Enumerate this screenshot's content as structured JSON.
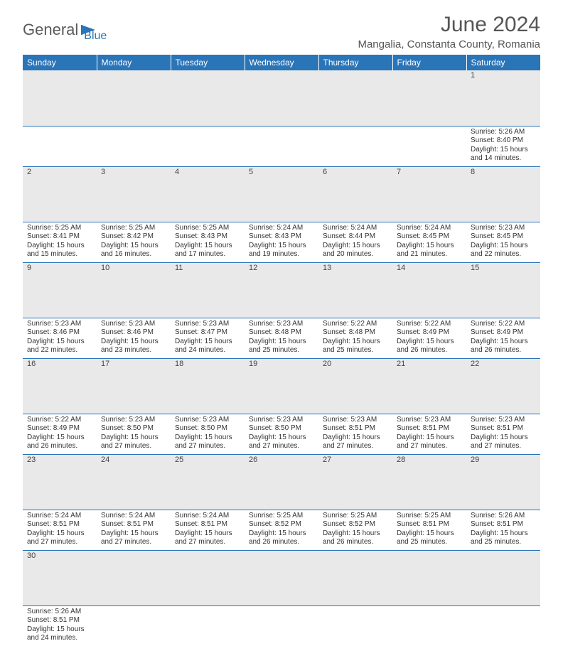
{
  "brand": {
    "part1": "General",
    "part2": "Blue"
  },
  "title": "June 2024",
  "location": "Mangalia, Constanta County, Romania",
  "colors": {
    "header_bg": "#2a74b8",
    "header_text": "#ffffff",
    "daynum_bg": "#e9e9e9",
    "grid_line": "#2a74b8",
    "body_text": "#333333"
  },
  "weekdays": [
    "Sunday",
    "Monday",
    "Tuesday",
    "Wednesday",
    "Thursday",
    "Friday",
    "Saturday"
  ],
  "weeks": [
    [
      null,
      null,
      null,
      null,
      null,
      null,
      {
        "n": "1",
        "sr": "Sunrise: 5:26 AM",
        "ss": "Sunset: 8:40 PM",
        "d1": "Daylight: 15 hours",
        "d2": "and 14 minutes."
      }
    ],
    [
      {
        "n": "2",
        "sr": "Sunrise: 5:25 AM",
        "ss": "Sunset: 8:41 PM",
        "d1": "Daylight: 15 hours",
        "d2": "and 15 minutes."
      },
      {
        "n": "3",
        "sr": "Sunrise: 5:25 AM",
        "ss": "Sunset: 8:42 PM",
        "d1": "Daylight: 15 hours",
        "d2": "and 16 minutes."
      },
      {
        "n": "4",
        "sr": "Sunrise: 5:25 AM",
        "ss": "Sunset: 8:43 PM",
        "d1": "Daylight: 15 hours",
        "d2": "and 17 minutes."
      },
      {
        "n": "5",
        "sr": "Sunrise: 5:24 AM",
        "ss": "Sunset: 8:43 PM",
        "d1": "Daylight: 15 hours",
        "d2": "and 19 minutes."
      },
      {
        "n": "6",
        "sr": "Sunrise: 5:24 AM",
        "ss": "Sunset: 8:44 PM",
        "d1": "Daylight: 15 hours",
        "d2": "and 20 minutes."
      },
      {
        "n": "7",
        "sr": "Sunrise: 5:24 AM",
        "ss": "Sunset: 8:45 PM",
        "d1": "Daylight: 15 hours",
        "d2": "and 21 minutes."
      },
      {
        "n": "8",
        "sr": "Sunrise: 5:23 AM",
        "ss": "Sunset: 8:45 PM",
        "d1": "Daylight: 15 hours",
        "d2": "and 22 minutes."
      }
    ],
    [
      {
        "n": "9",
        "sr": "Sunrise: 5:23 AM",
        "ss": "Sunset: 8:46 PM",
        "d1": "Daylight: 15 hours",
        "d2": "and 22 minutes."
      },
      {
        "n": "10",
        "sr": "Sunrise: 5:23 AM",
        "ss": "Sunset: 8:46 PM",
        "d1": "Daylight: 15 hours",
        "d2": "and 23 minutes."
      },
      {
        "n": "11",
        "sr": "Sunrise: 5:23 AM",
        "ss": "Sunset: 8:47 PM",
        "d1": "Daylight: 15 hours",
        "d2": "and 24 minutes."
      },
      {
        "n": "12",
        "sr": "Sunrise: 5:23 AM",
        "ss": "Sunset: 8:48 PM",
        "d1": "Daylight: 15 hours",
        "d2": "and 25 minutes."
      },
      {
        "n": "13",
        "sr": "Sunrise: 5:22 AM",
        "ss": "Sunset: 8:48 PM",
        "d1": "Daylight: 15 hours",
        "d2": "and 25 minutes."
      },
      {
        "n": "14",
        "sr": "Sunrise: 5:22 AM",
        "ss": "Sunset: 8:49 PM",
        "d1": "Daylight: 15 hours",
        "d2": "and 26 minutes."
      },
      {
        "n": "15",
        "sr": "Sunrise: 5:22 AM",
        "ss": "Sunset: 8:49 PM",
        "d1": "Daylight: 15 hours",
        "d2": "and 26 minutes."
      }
    ],
    [
      {
        "n": "16",
        "sr": "Sunrise: 5:22 AM",
        "ss": "Sunset: 8:49 PM",
        "d1": "Daylight: 15 hours",
        "d2": "and 26 minutes."
      },
      {
        "n": "17",
        "sr": "Sunrise: 5:23 AM",
        "ss": "Sunset: 8:50 PM",
        "d1": "Daylight: 15 hours",
        "d2": "and 27 minutes."
      },
      {
        "n": "18",
        "sr": "Sunrise: 5:23 AM",
        "ss": "Sunset: 8:50 PM",
        "d1": "Daylight: 15 hours",
        "d2": "and 27 minutes."
      },
      {
        "n": "19",
        "sr": "Sunrise: 5:23 AM",
        "ss": "Sunset: 8:50 PM",
        "d1": "Daylight: 15 hours",
        "d2": "and 27 minutes."
      },
      {
        "n": "20",
        "sr": "Sunrise: 5:23 AM",
        "ss": "Sunset: 8:51 PM",
        "d1": "Daylight: 15 hours",
        "d2": "and 27 minutes."
      },
      {
        "n": "21",
        "sr": "Sunrise: 5:23 AM",
        "ss": "Sunset: 8:51 PM",
        "d1": "Daylight: 15 hours",
        "d2": "and 27 minutes."
      },
      {
        "n": "22",
        "sr": "Sunrise: 5:23 AM",
        "ss": "Sunset: 8:51 PM",
        "d1": "Daylight: 15 hours",
        "d2": "and 27 minutes."
      }
    ],
    [
      {
        "n": "23",
        "sr": "Sunrise: 5:24 AM",
        "ss": "Sunset: 8:51 PM",
        "d1": "Daylight: 15 hours",
        "d2": "and 27 minutes."
      },
      {
        "n": "24",
        "sr": "Sunrise: 5:24 AM",
        "ss": "Sunset: 8:51 PM",
        "d1": "Daylight: 15 hours",
        "d2": "and 27 minutes."
      },
      {
        "n": "25",
        "sr": "Sunrise: 5:24 AM",
        "ss": "Sunset: 8:51 PM",
        "d1": "Daylight: 15 hours",
        "d2": "and 27 minutes."
      },
      {
        "n": "26",
        "sr": "Sunrise: 5:25 AM",
        "ss": "Sunset: 8:52 PM",
        "d1": "Daylight: 15 hours",
        "d2": "and 26 minutes."
      },
      {
        "n": "27",
        "sr": "Sunrise: 5:25 AM",
        "ss": "Sunset: 8:52 PM",
        "d1": "Daylight: 15 hours",
        "d2": "and 26 minutes."
      },
      {
        "n": "28",
        "sr": "Sunrise: 5:25 AM",
        "ss": "Sunset: 8:51 PM",
        "d1": "Daylight: 15 hours",
        "d2": "and 25 minutes."
      },
      {
        "n": "29",
        "sr": "Sunrise: 5:26 AM",
        "ss": "Sunset: 8:51 PM",
        "d1": "Daylight: 15 hours",
        "d2": "and 25 minutes."
      }
    ],
    [
      {
        "n": "30",
        "sr": "Sunrise: 5:26 AM",
        "ss": "Sunset: 8:51 PM",
        "d1": "Daylight: 15 hours",
        "d2": "and 24 minutes."
      },
      null,
      null,
      null,
      null,
      null,
      null
    ]
  ]
}
